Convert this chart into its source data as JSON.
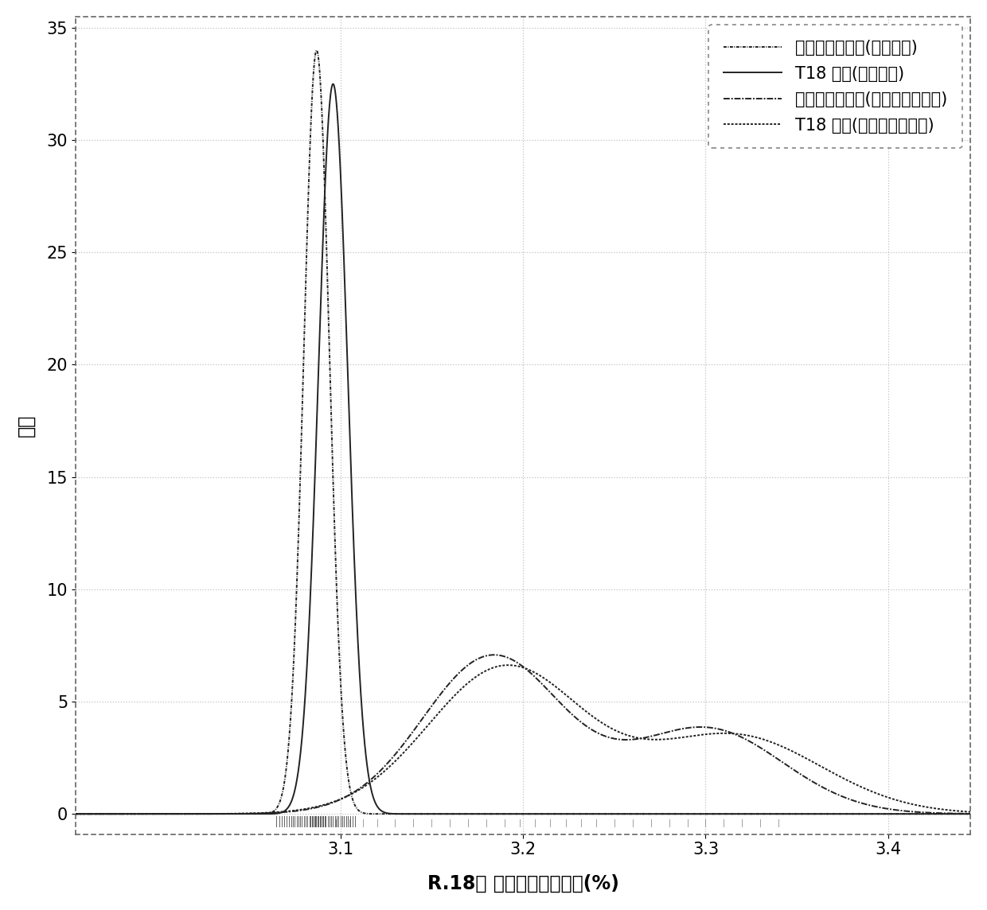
{
  "ylabel": "密度",
  "xlabel": "R.18， 未加权的和加权的(%)",
  "xlim": [
    2.955,
    3.445
  ],
  "ylim": [
    -0.9,
    35.5
  ],
  "yticks": [
    0,
    5,
    10,
    15,
    20,
    25,
    30,
    35
  ],
  "xticks": [
    3.1,
    3.2,
    3.3,
    3.4
  ],
  "legend_labels": [
    "未受影响的样品(未加权的)",
    "T18 样品(未加权的)",
    "未受影响的样品(片段大小加权的)",
    "T18 样品(片段大小加权的)"
  ],
  "background_color": "#ffffff",
  "grid_color": "#bbbbbb",
  "curve_color": "#222222",
  "mu1": 3.087,
  "sigma1": 0.007,
  "amp1": 34.0,
  "mu2": 3.096,
  "sigma2": 0.008,
  "amp2": 32.5,
  "mu3a": 3.183,
  "sigma3a": 0.038,
  "amp3a": 7.0,
  "mu3b": 3.3,
  "sigma3b": 0.042,
  "amp3b": 3.8,
  "mu4a": 3.19,
  "sigma4a": 0.042,
  "amp4a": 6.5,
  "mu4b": 3.315,
  "sigma4b": 0.048,
  "amp4b": 3.5
}
